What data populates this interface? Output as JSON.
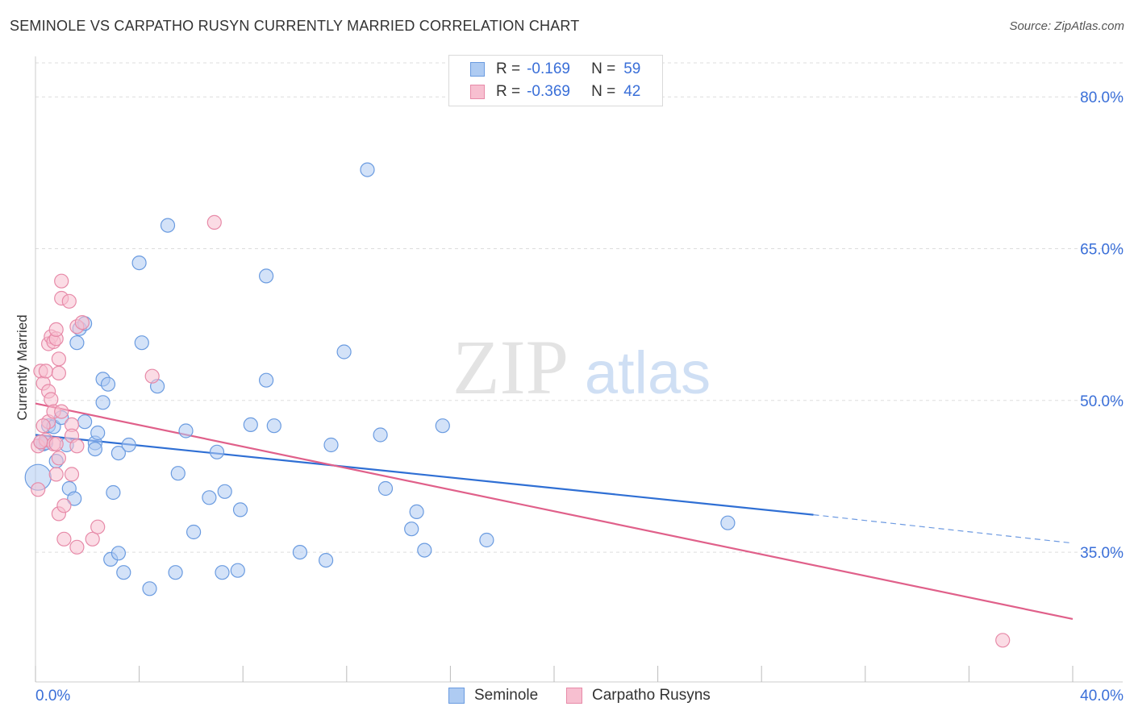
{
  "title": "SEMINOLE VS CARPATHO RUSYN CURRENTLY MARRIED CORRELATION CHART",
  "source": "Source: ZipAtlas.com",
  "watermark": {
    "zip": "ZIP",
    "atlas": "atlas"
  },
  "legend": {
    "r_label": "R =",
    "n_label": "N =",
    "series": [
      {
        "name": "Seminole",
        "r": "-0.169",
        "n": "59"
      },
      {
        "name": "Carpatho Rusyns",
        "r": "-0.369",
        "n": "42"
      }
    ]
  },
  "colors": {
    "seminole_fill": "#aecbf2",
    "seminole_stroke": "#6a9be0",
    "seminole_line": "#2f6fd4",
    "rusyn_fill": "#f7bfd0",
    "rusyn_stroke": "#e78aa8",
    "rusyn_line": "#e0608a",
    "tick_label": "#3a6fd8",
    "grid": "#dddddd"
  },
  "chart_data": {
    "type": "scatter",
    "title": "SEMINOLE VS CARPATHO RUSYN CURRENTLY MARRIED CORRELATION CHART",
    "xlabel": "",
    "ylabel": "Currently Married",
    "xlim": [
      0,
      40
    ],
    "ylim": [
      22.5,
      84
    ],
    "x_tick_labels": [
      "0.0%",
      "40.0%"
    ],
    "y_ticks": [
      35,
      50,
      65,
      80
    ],
    "y_tick_labels": [
      "35.0%",
      "50.0%",
      "65.0%",
      "80.0%"
    ],
    "grid": true,
    "legend_position": "top-center",
    "series": [
      {
        "name": "Seminole",
        "trend": {
          "x": [
            0,
            30
          ],
          "y": [
            46.6,
            38.7
          ],
          "dashed_to": [
            40,
            35.9
          ]
        },
        "points": [
          [
            0.1,
            42.4
          ],
          [
            0.3,
            45.7
          ],
          [
            0.4,
            45.8
          ],
          [
            0.5,
            47.5
          ],
          [
            0.7,
            47.4
          ],
          [
            0.8,
            44.0
          ],
          [
            1.0,
            48.3
          ],
          [
            1.2,
            45.6
          ],
          [
            1.3,
            41.3
          ],
          [
            1.5,
            40.3
          ],
          [
            1.6,
            55.7
          ],
          [
            1.7,
            57.1
          ],
          [
            1.9,
            47.9
          ],
          [
            1.9,
            57.6
          ],
          [
            2.3,
            45.8
          ],
          [
            2.3,
            45.2
          ],
          [
            2.4,
            46.8
          ],
          [
            2.6,
            52.1
          ],
          [
            2.6,
            49.8
          ],
          [
            2.8,
            51.6
          ],
          [
            2.9,
            34.3
          ],
          [
            3.0,
            40.9
          ],
          [
            3.2,
            34.9
          ],
          [
            3.2,
            44.8
          ],
          [
            3.4,
            33.0
          ],
          [
            3.6,
            45.6
          ],
          [
            4.0,
            63.6
          ],
          [
            4.1,
            55.7
          ],
          [
            4.4,
            31.4
          ],
          [
            4.7,
            51.4
          ],
          [
            5.1,
            67.3
          ],
          [
            5.4,
            33.0
          ],
          [
            5.5,
            42.8
          ],
          [
            5.8,
            47.0
          ],
          [
            6.1,
            37.0
          ],
          [
            6.7,
            40.4
          ],
          [
            7.0,
            44.9
          ],
          [
            7.2,
            33.0
          ],
          [
            7.3,
            41.0
          ],
          [
            7.8,
            33.2
          ],
          [
            7.9,
            39.2
          ],
          [
            8.3,
            47.6
          ],
          [
            8.9,
            52.0
          ],
          [
            8.9,
            62.3
          ],
          [
            9.2,
            47.5
          ],
          [
            10.2,
            35.0
          ],
          [
            11.2,
            34.2
          ],
          [
            11.4,
            45.6
          ],
          [
            11.9,
            54.8
          ],
          [
            12.8,
            72.8
          ],
          [
            13.3,
            46.6
          ],
          [
            13.5,
            41.3
          ],
          [
            14.5,
            37.3
          ],
          [
            14.7,
            39.0
          ],
          [
            15.0,
            35.2
          ],
          [
            15.7,
            47.5
          ],
          [
            17.4,
            36.2
          ],
          [
            26.7,
            37.9
          ],
          [
            0.2,
            45.9
          ]
        ]
      },
      {
        "name": "Carpatho Rusyns",
        "trend": {
          "x": [
            0,
            40
          ],
          "y": [
            49.7,
            28.4
          ]
        },
        "points": [
          [
            0.1,
            45.5
          ],
          [
            0.1,
            41.2
          ],
          [
            0.2,
            52.9
          ],
          [
            0.3,
            51.7
          ],
          [
            0.4,
            52.9
          ],
          [
            0.4,
            46.1
          ],
          [
            0.5,
            47.9
          ],
          [
            0.5,
            50.9
          ],
          [
            0.5,
            55.6
          ],
          [
            0.6,
            50.1
          ],
          [
            0.6,
            56.3
          ],
          [
            0.7,
            55.8
          ],
          [
            0.7,
            48.9
          ],
          [
            0.7,
            45.7
          ],
          [
            0.8,
            56.1
          ],
          [
            0.8,
            57.0
          ],
          [
            0.8,
            45.7
          ],
          [
            0.9,
            54.1
          ],
          [
            0.9,
            52.7
          ],
          [
            0.9,
            38.8
          ],
          [
            0.8,
            42.7
          ],
          [
            0.9,
            44.3
          ],
          [
            1.0,
            61.8
          ],
          [
            1.0,
            60.1
          ],
          [
            1.1,
            36.3
          ],
          [
            1.1,
            39.6
          ],
          [
            1.3,
            59.8
          ],
          [
            1.4,
            42.7
          ],
          [
            1.4,
            47.6
          ],
          [
            1.4,
            46.5
          ],
          [
            1.6,
            57.3
          ],
          [
            1.6,
            45.5
          ],
          [
            1.6,
            35.5
          ],
          [
            1.8,
            57.7
          ],
          [
            2.2,
            36.3
          ],
          [
            2.4,
            37.5
          ],
          [
            4.5,
            52.4
          ],
          [
            6.9,
            67.6
          ],
          [
            0.3,
            47.5
          ],
          [
            0.2,
            45.9
          ],
          [
            1.0,
            48.9
          ],
          [
            37.3,
            26.3
          ]
        ]
      }
    ]
  }
}
